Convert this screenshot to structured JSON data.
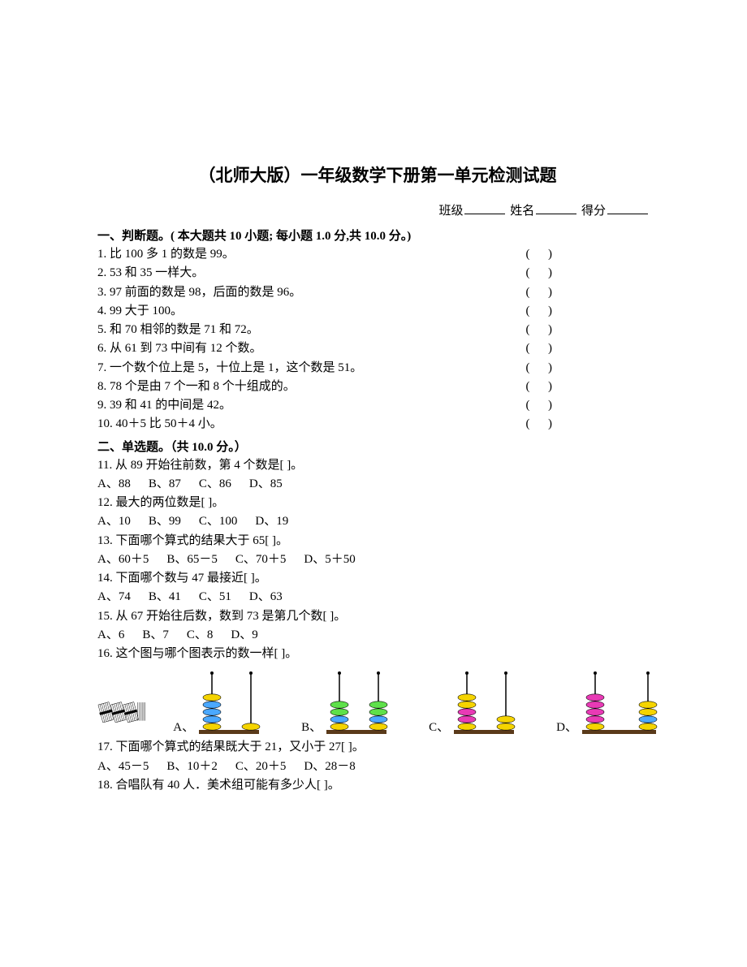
{
  "title": "（北师大版）一年级数学下册第一单元检测试题",
  "header": {
    "class_label": "班级",
    "name_label": "姓名",
    "score_label": "得分"
  },
  "section1": {
    "heading": "一、判断题。( 本大题共 10 小题; 每小题 1.0 分,共 10.0 分。)",
    "items": [
      {
        "n": "1.",
        "text": "比 100 多 1 的数是 99。"
      },
      {
        "n": "2.",
        "text": "53 和 35 一样大。"
      },
      {
        "n": "3.",
        "text": "97 前面的数是 98，后面的数是 96。"
      },
      {
        "n": "4.",
        "text": "99 大于 100。"
      },
      {
        "n": "5.",
        "text": "和 70 相邻的数是 71 和 72。"
      },
      {
        "n": "6.",
        "text": "从 61 到 73 中间有 12 个数。"
      },
      {
        "n": "7.",
        "text": "一个数个位上是 5，十位上是 1，这个数是 51。"
      },
      {
        "n": "8.",
        "text": "78 个是由 7 个一和 8 个十组成的。"
      },
      {
        "n": "9.",
        "text": "39 和 41 的中间是 42。"
      },
      {
        "n": "10.",
        "text": "40＋5 比 50＋4 小。"
      }
    ],
    "paren": "(      )"
  },
  "section2": {
    "heading": "二、单选题。（共 10.0 分。）",
    "q11": {
      "text": "11. 从 89 开始往前数，第 4 个数是[     ]。",
      "opts": [
        "A、88",
        "B、87",
        "C、86",
        "D、85"
      ]
    },
    "q12": {
      "text": "12. 最大的两位数是[     ]。",
      "opts": [
        "A、10",
        "B、99",
        "C、100",
        "D、19"
      ]
    },
    "q13": {
      "text": "13. 下面哪个算式的结果大于 65[     ]。",
      "opts": [
        "A、60＋5",
        "B、65－5",
        "C、70＋5",
        "D、5＋50"
      ]
    },
    "q14": {
      "text": "14. 下面哪个数与 47 最接近[     ]。",
      "opts": [
        "A、74",
        "B、41",
        "C、51",
        "D、63"
      ]
    },
    "q15": {
      "text": "15. 从 67 开始往后数，数到 73 是第几个数[     ]。",
      "opts": [
        "A、6",
        "B、7",
        "C、8",
        "D、9"
      ]
    },
    "q16": {
      "text": "16. 这个图与哪个图表示的数一样[     ]。"
    },
    "q17": {
      "text": "17. 下面哪个算式的结果既大于 21，又小于 27[     ]。",
      "opts": [
        "A、45－5",
        "B、10＋2",
        "C、20＋5",
        "D、28－8"
      ]
    },
    "q18": {
      "text": "18. 合唱队有 40 人．美术组可能有多少人[     ]。"
    }
  },
  "abacus": {
    "optA": {
      "label": "A、",
      "rods": [
        {
          "beads": 5,
          "colors": [
            "#f5d400",
            "#4aa8ff",
            "#4aa8ff",
            "#4aa8ff",
            "#f5d400"
          ]
        },
        {
          "beads": 1,
          "colors": [
            "#f5d400"
          ]
        }
      ]
    },
    "optB": {
      "label": "B、",
      "rods": [
        {
          "beads": 4,
          "colors": [
            "#f5d400",
            "#4aa8ff",
            "#5ee04a",
            "#5ee04a"
          ]
        },
        {
          "beads": 4,
          "colors": [
            "#f5d400",
            "#4aa8ff",
            "#5ee04a",
            "#5ee04a"
          ]
        }
      ]
    },
    "optC": {
      "label": "C、",
      "rods": [
        {
          "beads": 5,
          "colors": [
            "#f5d400",
            "#e83ab5",
            "#e83ab5",
            "#f5d400",
            "#f5d400"
          ]
        },
        {
          "beads": 2,
          "colors": [
            "#f5d400",
            "#f5d400"
          ]
        }
      ]
    },
    "optD": {
      "label": "D、",
      "rods": [
        {
          "beads": 5,
          "colors": [
            "#f5d400",
            "#e83ab5",
            "#e83ab5",
            "#e83ab5",
            "#e83ab5"
          ]
        },
        {
          "beads": 4,
          "colors": [
            "#f5d400",
            "#4aa8ff",
            "#f5d400",
            "#f5d400"
          ]
        }
      ]
    }
  },
  "colors": {
    "text": "#000000",
    "bg": "#ffffff",
    "rod": "#000000",
    "base": "#5a3a1a"
  }
}
